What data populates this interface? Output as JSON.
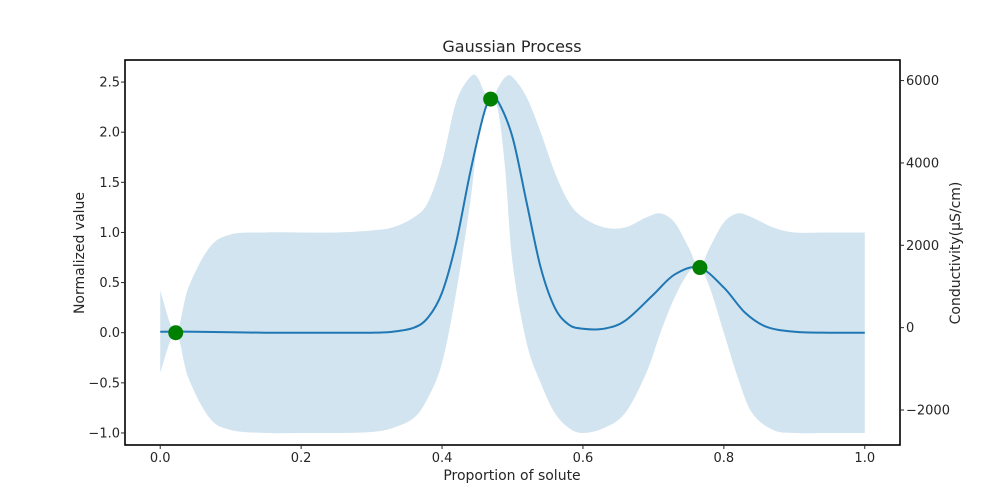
{
  "chart_data": {
    "type": "line",
    "title": "Gaussian Process",
    "xlabel": "Proportion of solute",
    "ylabel": "Normalized value",
    "y2label": "Conductivity(μS/cm)",
    "xlim": [
      -0.05,
      1.05
    ],
    "ylim": [
      -1.12,
      2.72
    ],
    "y2lim": [
      -2850,
      6500
    ],
    "x_ticks": [
      0.0,
      0.2,
      0.4,
      0.6,
      0.8,
      1.0
    ],
    "x_tick_labels": [
      "0.0",
      "0.2",
      "0.4",
      "0.6",
      "0.8",
      "1.0"
    ],
    "y_ticks": [
      -1.0,
      -0.5,
      0.0,
      0.5,
      1.0,
      1.5,
      2.0,
      2.5
    ],
    "y_tick_labels": [
      "−1.0",
      "−0.5",
      "0.0",
      "0.5",
      "1.0",
      "1.5",
      "2.0",
      "2.5"
    ],
    "y2_ticks": [
      -2000,
      0,
      2000,
      4000,
      6000
    ],
    "y2_tick_labels": [
      "−2000",
      "0",
      "2000",
      "4000",
      "6000"
    ],
    "grid": false,
    "mean_color": "#1f77b4",
    "band_color": "#1f77b4",
    "point_color": "#008000",
    "mean": {
      "x": [
        0.0,
        0.05,
        0.1,
        0.15,
        0.2,
        0.25,
        0.3,
        0.33,
        0.36,
        0.38,
        0.4,
        0.42,
        0.44,
        0.46,
        0.47,
        0.48,
        0.5,
        0.52,
        0.54,
        0.56,
        0.58,
        0.6,
        0.63,
        0.66,
        0.7,
        0.73,
        0.765,
        0.8,
        0.83,
        0.86,
        0.9,
        0.95,
        1.0
      ],
      "y": [
        0.01,
        0.01,
        0.005,
        0.0,
        0.0,
        0.0,
        0.0,
        0.01,
        0.05,
        0.15,
        0.4,
        0.9,
        1.6,
        2.2,
        2.33,
        2.3,
        1.95,
        1.3,
        0.65,
        0.25,
        0.08,
        0.04,
        0.04,
        0.12,
        0.38,
        0.58,
        0.65,
        0.45,
        0.2,
        0.06,
        0.01,
        0.0,
        0.0
      ]
    },
    "upper": {
      "x": [
        0.0,
        0.022,
        0.04,
        0.07,
        0.1,
        0.15,
        0.2,
        0.25,
        0.3,
        0.33,
        0.36,
        0.38,
        0.4,
        0.42,
        0.44,
        0.45,
        0.46,
        0.47,
        0.48,
        0.49,
        0.5,
        0.52,
        0.54,
        0.56,
        0.58,
        0.6,
        0.63,
        0.66,
        0.69,
        0.71,
        0.73,
        0.75,
        0.765,
        0.78,
        0.8,
        0.82,
        0.84,
        0.87,
        0.9,
        0.95,
        1.0
      ],
      "y": [
        0.42,
        0.0,
        0.45,
        0.85,
        0.98,
        1.0,
        1.0,
        1.0,
        1.02,
        1.05,
        1.15,
        1.3,
        1.7,
        2.3,
        2.55,
        2.55,
        2.4,
        2.33,
        2.45,
        2.55,
        2.55,
        2.35,
        2.0,
        1.6,
        1.3,
        1.15,
        1.05,
        1.05,
        1.15,
        1.19,
        1.1,
        0.85,
        0.65,
        0.85,
        1.1,
        1.19,
        1.15,
        1.05,
        1.0,
        1.0,
        1.0
      ]
    },
    "lower": {
      "x": [
        0.0,
        0.022,
        0.04,
        0.07,
        0.1,
        0.15,
        0.2,
        0.25,
        0.3,
        0.33,
        0.36,
        0.38,
        0.4,
        0.42,
        0.44,
        0.45,
        0.46,
        0.47,
        0.48,
        0.49,
        0.5,
        0.52,
        0.54,
        0.56,
        0.58,
        0.6,
        0.63,
        0.66,
        0.69,
        0.71,
        0.73,
        0.75,
        0.765,
        0.78,
        0.8,
        0.82,
        0.84,
        0.87,
        0.9,
        0.95,
        1.0
      ],
      "y": [
        -0.4,
        0.0,
        -0.45,
        -0.85,
        -0.97,
        -1.0,
        -1.0,
        -1.0,
        -0.99,
        -0.95,
        -0.85,
        -0.65,
        -0.3,
        0.4,
        1.3,
        1.9,
        2.2,
        2.33,
        2.2,
        1.6,
        0.7,
        -0.1,
        -0.5,
        -0.8,
        -0.95,
        -1.0,
        -0.95,
        -0.8,
        -0.4,
        0.0,
        0.35,
        0.6,
        0.65,
        0.45,
        0.0,
        -0.45,
        -0.8,
        -0.97,
        -1.0,
        -1.0,
        -1.0
      ]
    },
    "observations": {
      "x": [
        0.022,
        0.469,
        0.766
      ],
      "y": [
        0.0,
        2.33,
        0.65
      ]
    }
  }
}
